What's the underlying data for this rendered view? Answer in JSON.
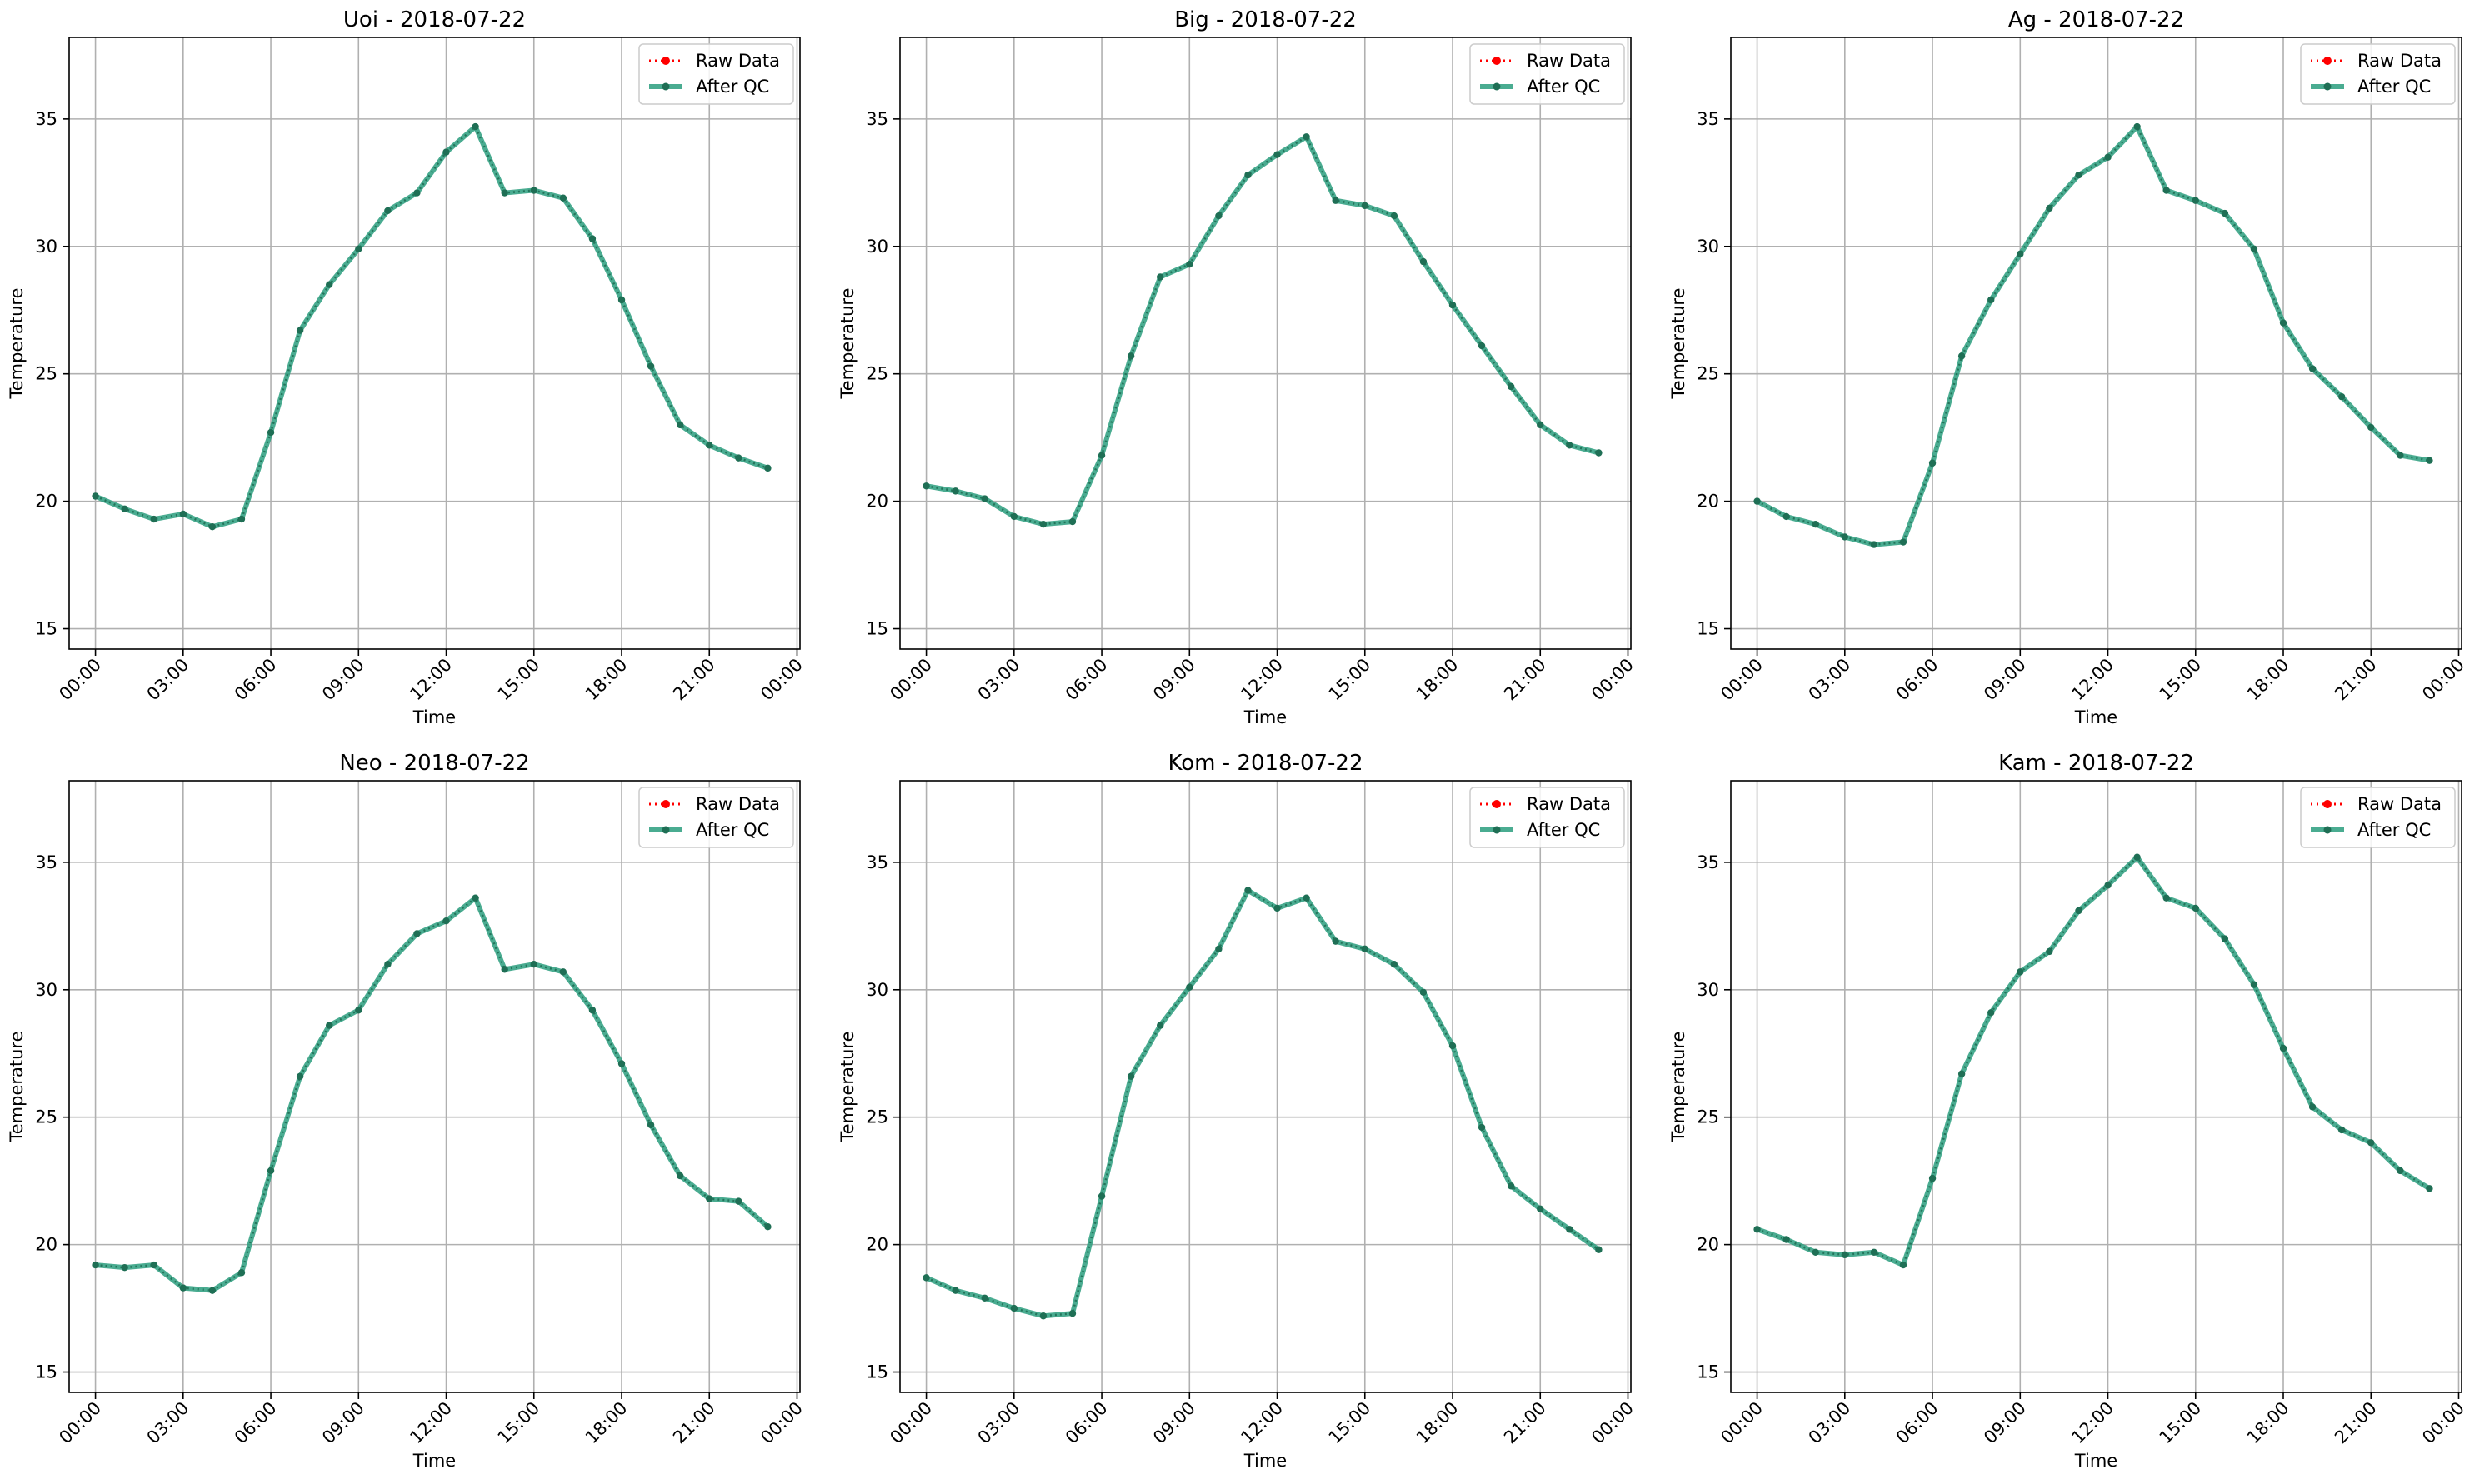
{
  "figure": {
    "background": "#ffffff",
    "grid_color": "#b0b0b0",
    "colors": {
      "raw": "#ff0000",
      "qc": "#2a9d7e",
      "qc_marker": "#1f6f55"
    }
  },
  "chart_data": [
    {
      "type": "line",
      "title": "Uoi - 2018-07-22",
      "xlabel": "Time",
      "ylabel": "Temperature",
      "xlim": [
        -0.9,
        24.1
      ],
      "ylim": [
        14.2,
        38.2
      ],
      "grid": true,
      "legend": "top-right",
      "x_ticks": [
        0,
        3,
        6,
        9,
        12,
        15,
        18,
        21,
        24
      ],
      "x_tick_labels": [
        "00:00",
        "03:00",
        "06:00",
        "09:00",
        "12:00",
        "15:00",
        "18:00",
        "21:00",
        "00:00"
      ],
      "y_ticks": [
        15,
        20,
        25,
        30,
        35
      ],
      "x": [
        0,
        1,
        2,
        3,
        4,
        5,
        6,
        7,
        8,
        9,
        10,
        11,
        12,
        13,
        14,
        15,
        16,
        17,
        18,
        19,
        20,
        21,
        22,
        23
      ],
      "series": [
        {
          "name": "Raw Data",
          "style": "dotted",
          "values": [
            20.2,
            19.7,
            19.3,
            19.5,
            19.0,
            19.3,
            22.7,
            26.7,
            28.5,
            29.9,
            31.4,
            32.1,
            33.7,
            34.7,
            32.1,
            32.2,
            31.9,
            30.3,
            27.9,
            25.3,
            23.0,
            22.2,
            21.7,
            21.3
          ]
        },
        {
          "name": "After QC",
          "style": "solid",
          "values": [
            20.2,
            19.7,
            19.3,
            19.5,
            19.0,
            19.3,
            22.7,
            26.7,
            28.5,
            29.9,
            31.4,
            32.1,
            33.7,
            34.7,
            32.1,
            32.2,
            31.9,
            30.3,
            27.9,
            25.3,
            23.0,
            22.2,
            21.7,
            21.3
          ]
        }
      ]
    },
    {
      "type": "line",
      "title": "Big - 2018-07-22",
      "xlabel": "Time",
      "ylabel": "Temperature",
      "xlim": [
        -0.9,
        24.1
      ],
      "ylim": [
        14.2,
        38.2
      ],
      "grid": true,
      "legend": "top-right",
      "x_ticks": [
        0,
        3,
        6,
        9,
        12,
        15,
        18,
        21,
        24
      ],
      "x_tick_labels": [
        "00:00",
        "03:00",
        "06:00",
        "09:00",
        "12:00",
        "15:00",
        "18:00",
        "21:00",
        "00:00"
      ],
      "y_ticks": [
        15,
        20,
        25,
        30,
        35
      ],
      "x": [
        0,
        1,
        2,
        3,
        4,
        5,
        6,
        7,
        8,
        9,
        10,
        11,
        12,
        13,
        14,
        15,
        16,
        17,
        18,
        19,
        20,
        21,
        22,
        23
      ],
      "series": [
        {
          "name": "Raw Data",
          "style": "dotted",
          "values": [
            20.6,
            20.4,
            20.1,
            19.4,
            19.1,
            19.2,
            21.8,
            25.7,
            28.8,
            29.3,
            31.2,
            32.8,
            33.6,
            34.3,
            31.8,
            31.6,
            31.2,
            29.4,
            27.7,
            26.1,
            24.5,
            23.0,
            22.2,
            21.9
          ]
        },
        {
          "name": "After QC",
          "style": "solid",
          "values": [
            20.6,
            20.4,
            20.1,
            19.4,
            19.1,
            19.2,
            21.8,
            25.7,
            28.8,
            29.3,
            31.2,
            32.8,
            33.6,
            34.3,
            31.8,
            31.6,
            31.2,
            29.4,
            27.7,
            26.1,
            24.5,
            23.0,
            22.2,
            21.9
          ]
        }
      ]
    },
    {
      "type": "line",
      "title": "Ag - 2018-07-22",
      "xlabel": "Time",
      "ylabel": "Temperature",
      "xlim": [
        -0.9,
        24.1
      ],
      "ylim": [
        14.2,
        38.2
      ],
      "grid": true,
      "legend": "top-right",
      "x_ticks": [
        0,
        3,
        6,
        9,
        12,
        15,
        18,
        21,
        24
      ],
      "x_tick_labels": [
        "00:00",
        "03:00",
        "06:00",
        "09:00",
        "12:00",
        "15:00",
        "18:00",
        "21:00",
        "00:00"
      ],
      "y_ticks": [
        15,
        20,
        25,
        30,
        35
      ],
      "x": [
        0,
        1,
        2,
        3,
        4,
        5,
        6,
        7,
        8,
        9,
        10,
        11,
        12,
        13,
        14,
        15,
        16,
        17,
        18,
        19,
        20,
        21,
        22,
        23
      ],
      "series": [
        {
          "name": "Raw Data",
          "style": "dotted",
          "values": [
            20.0,
            19.4,
            19.1,
            18.6,
            18.3,
            18.4,
            21.5,
            25.7,
            27.9,
            29.7,
            31.5,
            32.8,
            33.5,
            34.7,
            32.2,
            31.8,
            31.3,
            29.9,
            27.0,
            25.2,
            24.1,
            22.9,
            21.8,
            21.6
          ]
        },
        {
          "name": "After QC",
          "style": "solid",
          "values": [
            20.0,
            19.4,
            19.1,
            18.6,
            18.3,
            18.4,
            21.5,
            25.7,
            27.9,
            29.7,
            31.5,
            32.8,
            33.5,
            34.7,
            32.2,
            31.8,
            31.3,
            29.9,
            27.0,
            25.2,
            24.1,
            22.9,
            21.8,
            21.6
          ]
        }
      ]
    },
    {
      "type": "line",
      "title": "Neo - 2018-07-22",
      "xlabel": "Time",
      "ylabel": "Temperature",
      "xlim": [
        -0.9,
        24.1
      ],
      "ylim": [
        14.2,
        38.2
      ],
      "grid": true,
      "legend": "top-right",
      "x_ticks": [
        0,
        3,
        6,
        9,
        12,
        15,
        18,
        21,
        24
      ],
      "x_tick_labels": [
        "00:00",
        "03:00",
        "06:00",
        "09:00",
        "12:00",
        "15:00",
        "18:00",
        "21:00",
        "00:00"
      ],
      "y_ticks": [
        15,
        20,
        25,
        30,
        35
      ],
      "x": [
        0,
        1,
        2,
        3,
        4,
        5,
        6,
        7,
        8,
        9,
        10,
        11,
        12,
        13,
        14,
        15,
        16,
        17,
        18,
        19,
        20,
        21,
        22,
        23
      ],
      "series": [
        {
          "name": "Raw Data",
          "style": "dotted",
          "values": [
            19.2,
            19.1,
            19.2,
            18.3,
            18.2,
            18.9,
            22.9,
            26.6,
            28.6,
            29.2,
            31.0,
            32.2,
            32.7,
            33.6,
            30.8,
            31.0,
            30.7,
            29.2,
            27.1,
            24.7,
            22.7,
            21.8,
            21.7,
            20.7
          ]
        },
        {
          "name": "After QC",
          "style": "solid",
          "values": [
            19.2,
            19.1,
            19.2,
            18.3,
            18.2,
            18.9,
            22.9,
            26.6,
            28.6,
            29.2,
            31.0,
            32.2,
            32.7,
            33.6,
            30.8,
            31.0,
            30.7,
            29.2,
            27.1,
            24.7,
            22.7,
            21.8,
            21.7,
            20.7
          ]
        }
      ]
    },
    {
      "type": "line",
      "title": "Kom - 2018-07-22",
      "xlabel": "Time",
      "ylabel": "Temperature",
      "xlim": [
        -0.9,
        24.1
      ],
      "ylim": [
        14.2,
        38.2
      ],
      "grid": true,
      "legend": "top-right",
      "x_ticks": [
        0,
        3,
        6,
        9,
        12,
        15,
        18,
        21,
        24
      ],
      "x_tick_labels": [
        "00:00",
        "03:00",
        "06:00",
        "09:00",
        "12:00",
        "15:00",
        "18:00",
        "21:00",
        "00:00"
      ],
      "y_ticks": [
        15,
        20,
        25,
        30,
        35
      ],
      "x": [
        0,
        1,
        2,
        3,
        4,
        5,
        6,
        7,
        8,
        9,
        10,
        11,
        12,
        13,
        14,
        15,
        16,
        17,
        18,
        19,
        20,
        21,
        22,
        23
      ],
      "series": [
        {
          "name": "Raw Data",
          "style": "dotted",
          "values": [
            18.7,
            18.2,
            17.9,
            17.5,
            17.2,
            17.3,
            21.9,
            26.6,
            28.6,
            30.1,
            31.6,
            33.9,
            33.2,
            33.6,
            31.9,
            31.6,
            31.0,
            29.9,
            27.8,
            24.6,
            22.3,
            21.4,
            20.6,
            19.8
          ]
        },
        {
          "name": "After QC",
          "style": "solid",
          "values": [
            18.7,
            18.2,
            17.9,
            17.5,
            17.2,
            17.3,
            21.9,
            26.6,
            28.6,
            30.1,
            31.6,
            33.9,
            33.2,
            33.6,
            31.9,
            31.6,
            31.0,
            29.9,
            27.8,
            24.6,
            22.3,
            21.4,
            20.6,
            19.8
          ]
        }
      ]
    },
    {
      "type": "line",
      "title": "Kam - 2018-07-22",
      "xlabel": "Time",
      "ylabel": "Temperature",
      "xlim": [
        -0.9,
        24.1
      ],
      "ylim": [
        14.2,
        38.2
      ],
      "grid": true,
      "legend": "top-right",
      "x_ticks": [
        0,
        3,
        6,
        9,
        12,
        15,
        18,
        21,
        24
      ],
      "x_tick_labels": [
        "00:00",
        "03:00",
        "06:00",
        "09:00",
        "12:00",
        "15:00",
        "18:00",
        "21:00",
        "00:00"
      ],
      "y_ticks": [
        15,
        20,
        25,
        30,
        35
      ],
      "x": [
        0,
        1,
        2,
        3,
        4,
        5,
        6,
        7,
        8,
        9,
        10,
        11,
        12,
        13,
        14,
        15,
        16,
        17,
        18,
        19,
        20,
        21,
        22,
        23
      ],
      "series": [
        {
          "name": "Raw Data",
          "style": "dotted",
          "values": [
            20.6,
            20.2,
            19.7,
            19.6,
            19.7,
            19.2,
            22.6,
            26.7,
            29.1,
            30.7,
            31.5,
            33.1,
            34.1,
            35.2,
            33.6,
            33.2,
            32.0,
            30.2,
            27.7,
            25.4,
            24.5,
            24.0,
            22.9,
            22.2
          ]
        },
        {
          "name": "After QC",
          "style": "solid",
          "values": [
            20.6,
            20.2,
            19.7,
            19.6,
            19.7,
            19.2,
            22.6,
            26.7,
            29.1,
            30.7,
            31.5,
            33.1,
            34.1,
            35.2,
            33.6,
            33.2,
            32.0,
            30.2,
            27.7,
            25.4,
            24.5,
            24.0,
            22.9,
            22.2
          ]
        }
      ]
    }
  ]
}
